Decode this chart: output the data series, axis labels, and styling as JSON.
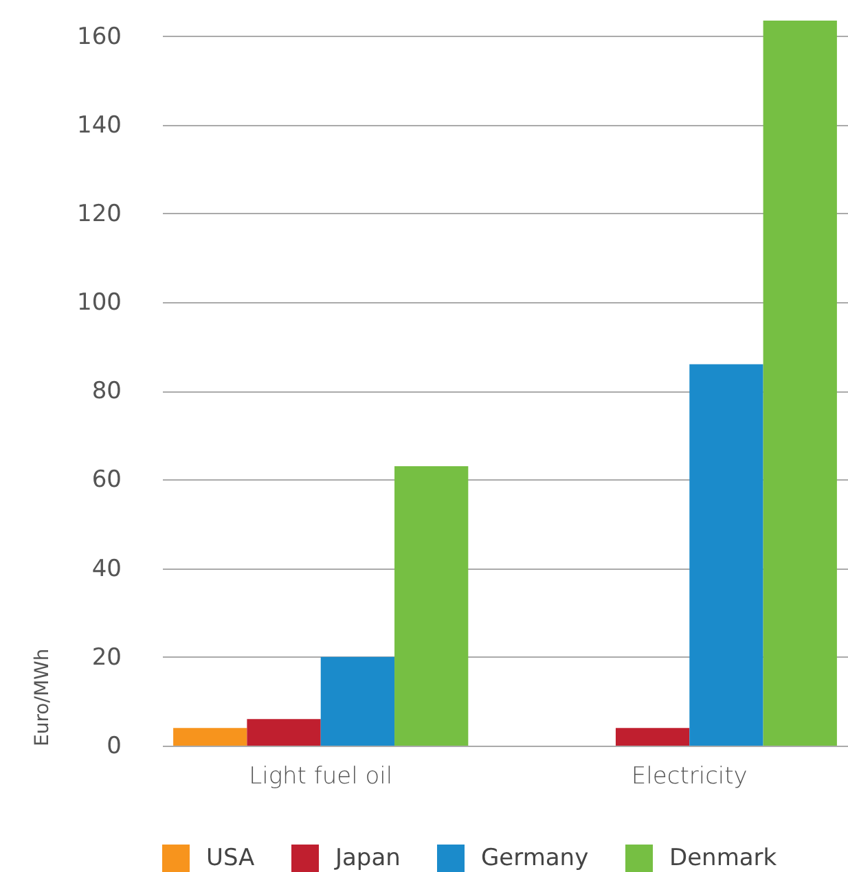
{
  "chart_data": {
    "type": "bar",
    "categories": [
      "Light fuel oil",
      "Electricity"
    ],
    "ylabel": "Euro/MWh",
    "series": [
      {
        "name": "USA",
        "color": "#f7941d",
        "values": [
          4,
          0
        ]
      },
      {
        "name": "Japan",
        "color": "#c01f2f",
        "values": [
          6,
          4
        ]
      },
      {
        "name": "Germany",
        "color": "#1b8bcb",
        "values": [
          20,
          86
        ]
      },
      {
        "name": "Denmark",
        "color": "#76bf43",
        "values": [
          63,
          163.5
        ]
      }
    ],
    "ylim": [
      0,
      163.5
    ],
    "yticks": [
      0,
      20,
      40,
      60,
      80,
      100,
      120,
      140,
      160
    ],
    "grid": "y",
    "legend": "bottom"
  }
}
